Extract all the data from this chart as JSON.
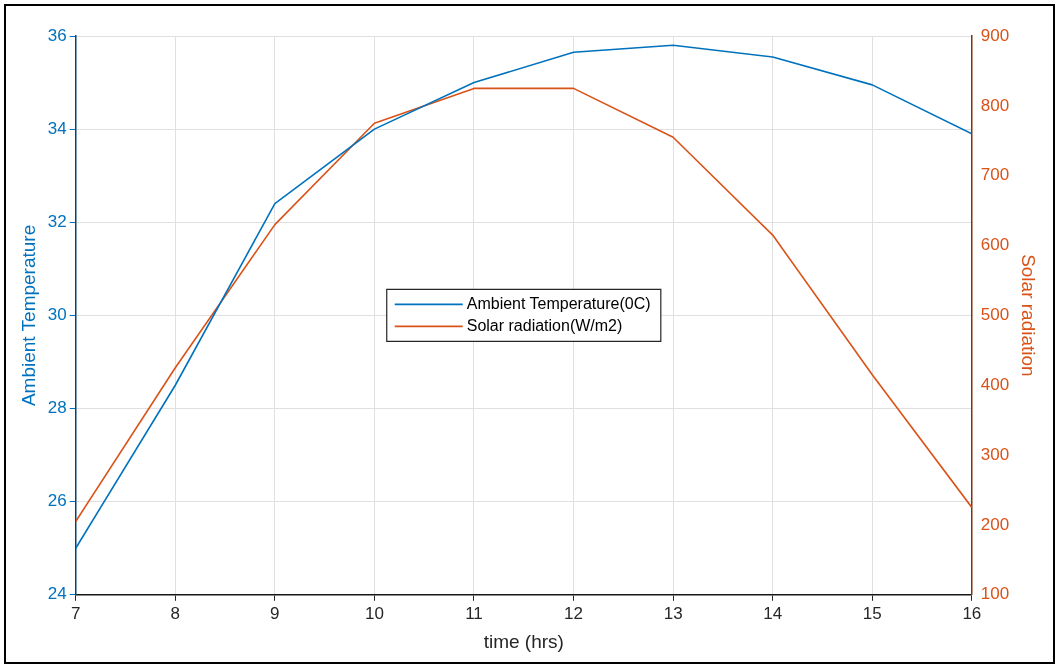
{
  "chart_data": {
    "type": "line",
    "xlabel": "time (hrs)",
    "ylabel": "Ambient Temperature",
    "y2label": "Solar radiation",
    "x": [
      7,
      8,
      9,
      10,
      11,
      12,
      13,
      14,
      15,
      16
    ],
    "series": [
      {
        "name": "Ambient Temperature(0C)",
        "color": "#0072bd",
        "values": [
          25.0,
          28.5,
          32.4,
          34.0,
          35.0,
          35.65,
          35.8,
          35.55,
          34.95,
          33.9
        ]
      },
      {
        "name": "Solar radiation(W/m2)",
        "color": "#d95319",
        "axis": "y2",
        "values": [
          205,
          425,
          630,
          775,
          825,
          825,
          755,
          615,
          415,
          225
        ]
      }
    ],
    "xlim": [
      7,
      16
    ],
    "xticks": [
      7,
      8,
      9,
      10,
      11,
      12,
      13,
      14,
      15,
      16
    ],
    "ylim": [
      24,
      36
    ],
    "yticks": [
      24,
      26,
      28,
      30,
      32,
      34,
      36
    ],
    "y2lim": [
      100,
      900
    ],
    "y2ticks": [
      100,
      200,
      300,
      400,
      500,
      600,
      700,
      800,
      900
    ],
    "grid": true,
    "legend": "center",
    "marker": "none",
    "line_style": "solid"
  }
}
